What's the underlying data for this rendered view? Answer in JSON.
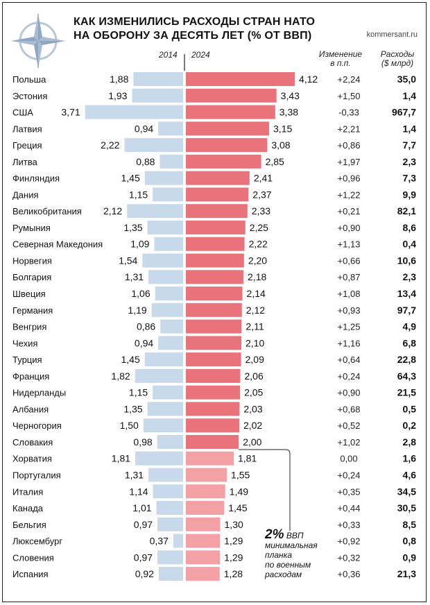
{
  "header": {
    "title_line1": "КАК ИЗМЕНИЛИСЬ РАСХОДЫ СТРАН НАТО",
    "title_line2": "НА ОБОРОНУ ЗА ДЕСЯТЬ ЛЕТ (% ОТ ВВП)",
    "source": "kommersant.ru",
    "col_2014": "2014",
    "col_2024": "2024",
    "col_change_1": "Изменение",
    "col_change_2": "в п.п.",
    "col_spend_1": "Расходы",
    "col_spend_2": "($ млрд)"
  },
  "annotation": {
    "big": "2%",
    "line1": "ВВП",
    "line2": "минимальная",
    "line3": "планка",
    "line4": "по военным",
    "line5": "расходам"
  },
  "colors": {
    "bar_2014": "#c7d9ea",
    "bar_2024_above": "#e8737b",
    "bar_2024_below": "#f4a1a6"
  },
  "chart_data": {
    "type": "bar",
    "categories": [
      "Польша",
      "Эстония",
      "США",
      "Латвия",
      "Греция",
      "Литва",
      "Финляндия",
      "Дания",
      "Великобритания",
      "Румыния",
      "Северная Македония",
      "Норвегия",
      "Болгария",
      "Швеция",
      "Германия",
      "Венгрия",
      "Чехия",
      "Турция",
      "Франция",
      "Нидерланды",
      "Албания",
      "Черногория",
      "Словакия",
      "Хорватия",
      "Португалия",
      "Италия",
      "Канада",
      "Бельгия",
      "Люксембург",
      "Словения",
      "Испания"
    ],
    "series": [
      {
        "name": "2014",
        "values": [
          1.88,
          1.93,
          3.71,
          0.94,
          2.22,
          0.88,
          1.45,
          1.15,
          2.12,
          1.35,
          1.09,
          1.54,
          1.31,
          1.06,
          1.19,
          0.86,
          0.94,
          1.45,
          1.82,
          1.15,
          1.35,
          1.5,
          0.98,
          1.81,
          1.31,
          1.14,
          1.01,
          0.97,
          0.37,
          0.97,
          0.92
        ]
      },
      {
        "name": "2024",
        "values": [
          4.12,
          3.43,
          3.38,
          3.15,
          3.08,
          2.85,
          2.41,
          2.37,
          2.33,
          2.25,
          2.22,
          2.2,
          2.18,
          2.14,
          2.12,
          2.11,
          2.1,
          2.09,
          2.06,
          2.05,
          2.03,
          2.02,
          2.0,
          1.81,
          1.55,
          1.49,
          1.45,
          1.3,
          1.29,
          1.29,
          1.28
        ]
      }
    ],
    "labels_2014": [
      "1,88",
      "1,93",
      "3,71",
      "0,94",
      "2,22",
      "0,88",
      "1,45",
      "1,15",
      "2,12",
      "1,35",
      "1,09",
      "1,54",
      "1,31",
      "1,06",
      "1,19",
      "0,86",
      "0,94",
      "1,45",
      "1,82",
      "1,15",
      "1,35",
      "1,50",
      "0,98",
      "1,81",
      "1,31",
      "1,14",
      "1,01",
      "0,97",
      "0,37",
      "0,97",
      "0,92"
    ],
    "labels_2024": [
      "4,12",
      "3,43",
      "3,38",
      "3,15",
      "3,08",
      "2,85",
      "2,41",
      "2,37",
      "2,33",
      "2,25",
      "2,22",
      "2,20",
      "2,18",
      "2,14",
      "2,12",
      "2,11",
      "2,10",
      "2,09",
      "2,06",
      "2,05",
      "2,03",
      "2,02",
      "2,00",
      "1,81",
      "1,55",
      "1,49",
      "1,45",
      "1,30",
      "1,29",
      "1,29",
      "1,28"
    ],
    "change": [
      "+2,24",
      "+1,50",
      "-0,33",
      "+2,21",
      "+0,86",
      "+1,97",
      "+0,96",
      "+1,22",
      "+0,21",
      "+0,90",
      "+1,13",
      "+0,66",
      "+0,87",
      "+1,08",
      "+0,93",
      "+1,25",
      "+1,16",
      "+0,64",
      "+0,24",
      "+0,90",
      "+0,68",
      "+0,52",
      "+1,02",
      "0,00",
      "+0,24",
      "+0,35",
      "+0,44",
      "+0,33",
      "+0,92",
      "+0,32",
      "+0,36"
    ],
    "spending": [
      "35,0",
      "1,4",
      "967,7",
      "1,4",
      "7,7",
      "2,3",
      "7,3",
      "9,9",
      "82,1",
      "8,6",
      "0,4",
      "10,6",
      "2,3",
      "13,4",
      "97,7",
      "4,9",
      "6,8",
      "22,8",
      "64,3",
      "21,5",
      "0,5",
      "0,2",
      "2,8",
      "1,6",
      "4,6",
      "34,5",
      "30,5",
      "8,5",
      "0,8",
      "0,9",
      "21,3"
    ],
    "threshold": 2.0
  }
}
